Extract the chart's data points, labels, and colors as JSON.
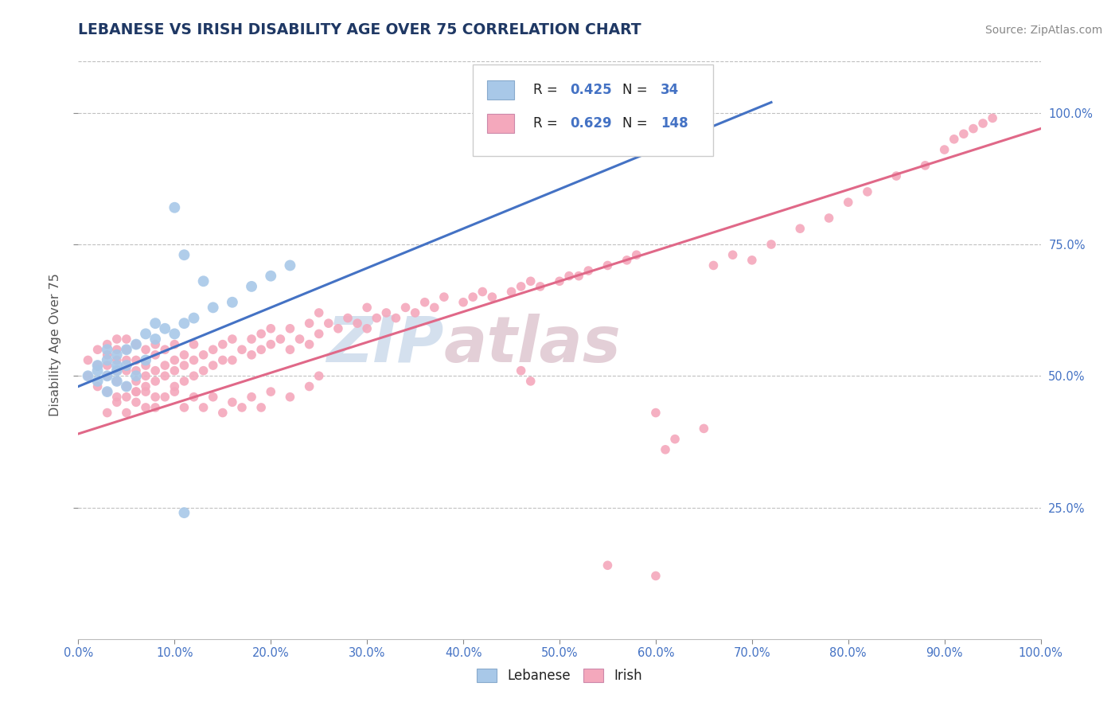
{
  "title": "LEBANESE VS IRISH DISABILITY AGE OVER 75 CORRELATION CHART",
  "source": "Source: ZipAtlas.com",
  "ylabel": "Disability Age Over 75",
  "r_lebanese": 0.425,
  "n_lebanese": 34,
  "r_irish": 0.629,
  "n_irish": 148,
  "lebanese_color": "#a8c8e8",
  "irish_color": "#f4a8bc",
  "lebanese_line_color": "#4472c4",
  "irish_line_color": "#e06888",
  "title_color": "#1f3864",
  "source_color": "#888888",
  "ylabel_color": "#555555",
  "axis_label_color": "#4472c4",
  "watermark_color_zip": "#b8cce4",
  "watermark_color_atlas": "#c8a0b0",
  "background_color": "#ffffff",
  "grid_color": "#c0c0c0",
  "lebanese_x": [
    0.01,
    0.02,
    0.02,
    0.02,
    0.03,
    0.03,
    0.03,
    0.03,
    0.04,
    0.04,
    0.04,
    0.04,
    0.05,
    0.05,
    0.05,
    0.06,
    0.06,
    0.07,
    0.07,
    0.08,
    0.08,
    0.09,
    0.1,
    0.11,
    0.12,
    0.14,
    0.16,
    0.18,
    0.2,
    0.22,
    0.1,
    0.11,
    0.13,
    0.11
  ],
  "lebanese_y": [
    0.5,
    0.49,
    0.52,
    0.51,
    0.53,
    0.5,
    0.47,
    0.55,
    0.52,
    0.54,
    0.49,
    0.51,
    0.55,
    0.52,
    0.48,
    0.56,
    0.5,
    0.58,
    0.53,
    0.57,
    0.6,
    0.59,
    0.58,
    0.6,
    0.61,
    0.63,
    0.64,
    0.67,
    0.69,
    0.71,
    0.82,
    0.73,
    0.68,
    0.24
  ],
  "irish_x": [
    0.01,
    0.01,
    0.02,
    0.02,
    0.02,
    0.03,
    0.03,
    0.03,
    0.03,
    0.03,
    0.04,
    0.04,
    0.04,
    0.04,
    0.04,
    0.04,
    0.05,
    0.05,
    0.05,
    0.05,
    0.05,
    0.05,
    0.06,
    0.06,
    0.06,
    0.06,
    0.06,
    0.07,
    0.07,
    0.07,
    0.07,
    0.08,
    0.08,
    0.08,
    0.08,
    0.09,
    0.09,
    0.09,
    0.1,
    0.1,
    0.1,
    0.1,
    0.11,
    0.11,
    0.11,
    0.12,
    0.12,
    0.12,
    0.13,
    0.13,
    0.14,
    0.14,
    0.15,
    0.15,
    0.16,
    0.16,
    0.17,
    0.18,
    0.18,
    0.19,
    0.19,
    0.2,
    0.2,
    0.21,
    0.22,
    0.22,
    0.23,
    0.24,
    0.24,
    0.25,
    0.25,
    0.26,
    0.27,
    0.28,
    0.29,
    0.3,
    0.3,
    0.31,
    0.32,
    0.33,
    0.34,
    0.35,
    0.36,
    0.37,
    0.38,
    0.4,
    0.41,
    0.42,
    0.43,
    0.45,
    0.46,
    0.47,
    0.48,
    0.5,
    0.51,
    0.52,
    0.53,
    0.55,
    0.57,
    0.58,
    0.6,
    0.61,
    0.62,
    0.65,
    0.66,
    0.68,
    0.7,
    0.72,
    0.75,
    0.78,
    0.8,
    0.82,
    0.85,
    0.88,
    0.9,
    0.91,
    0.92,
    0.93,
    0.94,
    0.95,
    0.03,
    0.04,
    0.05,
    0.06,
    0.06,
    0.07,
    0.07,
    0.08,
    0.08,
    0.09,
    0.1,
    0.11,
    0.12,
    0.13,
    0.14,
    0.15,
    0.16,
    0.17,
    0.18,
    0.19,
    0.2,
    0.22,
    0.24,
    0.25,
    0.46,
    0.47,
    0.55,
    0.6
  ],
  "irish_y": [
    0.5,
    0.53,
    0.48,
    0.52,
    0.55,
    0.47,
    0.5,
    0.52,
    0.54,
    0.56,
    0.46,
    0.49,
    0.51,
    0.53,
    0.55,
    0.57,
    0.46,
    0.48,
    0.51,
    0.53,
    0.55,
    0.57,
    0.47,
    0.49,
    0.51,
    0.53,
    0.56,
    0.48,
    0.5,
    0.52,
    0.55,
    0.49,
    0.51,
    0.54,
    0.56,
    0.5,
    0.52,
    0.55,
    0.48,
    0.51,
    0.53,
    0.56,
    0.49,
    0.52,
    0.54,
    0.5,
    0.53,
    0.56,
    0.51,
    0.54,
    0.52,
    0.55,
    0.53,
    0.56,
    0.53,
    0.57,
    0.55,
    0.54,
    0.57,
    0.55,
    0.58,
    0.56,
    0.59,
    0.57,
    0.55,
    0.59,
    0.57,
    0.56,
    0.6,
    0.58,
    0.62,
    0.6,
    0.59,
    0.61,
    0.6,
    0.59,
    0.63,
    0.61,
    0.62,
    0.61,
    0.63,
    0.62,
    0.64,
    0.63,
    0.65,
    0.64,
    0.65,
    0.66,
    0.65,
    0.66,
    0.67,
    0.68,
    0.67,
    0.68,
    0.69,
    0.69,
    0.7,
    0.71,
    0.72,
    0.73,
    0.43,
    0.36,
    0.38,
    0.4,
    0.71,
    0.73,
    0.72,
    0.75,
    0.78,
    0.8,
    0.83,
    0.85,
    0.88,
    0.9,
    0.93,
    0.95,
    0.96,
    0.97,
    0.98,
    0.99,
    0.43,
    0.45,
    0.43,
    0.47,
    0.45,
    0.47,
    0.44,
    0.46,
    0.44,
    0.46,
    0.47,
    0.44,
    0.46,
    0.44,
    0.46,
    0.43,
    0.45,
    0.44,
    0.46,
    0.44,
    0.47,
    0.46,
    0.48,
    0.5,
    0.51,
    0.49,
    0.14,
    0.12
  ],
  "leb_line_x0": 0.0,
  "leb_line_y0": 0.48,
  "leb_line_x1": 0.72,
  "leb_line_y1": 1.02,
  "iri_line_x0": 0.0,
  "iri_line_y0": 0.39,
  "iri_line_x1": 1.0,
  "iri_line_y1": 0.97,
  "xlim": [
    0.0,
    1.0
  ],
  "ylim_min": 0.0,
  "ylim_max": 1.12,
  "ytick_positions": [
    0.25,
    0.5,
    0.75,
    1.0
  ],
  "ytick_labels": [
    "25.0%",
    "50.0%",
    "75.0%",
    "100.0%"
  ],
  "xtick_vals": [
    0.0,
    0.1,
    0.2,
    0.3,
    0.4,
    0.5,
    0.6,
    0.7,
    0.8,
    0.9,
    1.0
  ],
  "xtick_labels": [
    "0.0%",
    "10.0%",
    "20.0%",
    "30.0%",
    "40.0%",
    "50.0%",
    "60.0%",
    "70.0%",
    "80.0%",
    "90.0%",
    "100.0%"
  ]
}
